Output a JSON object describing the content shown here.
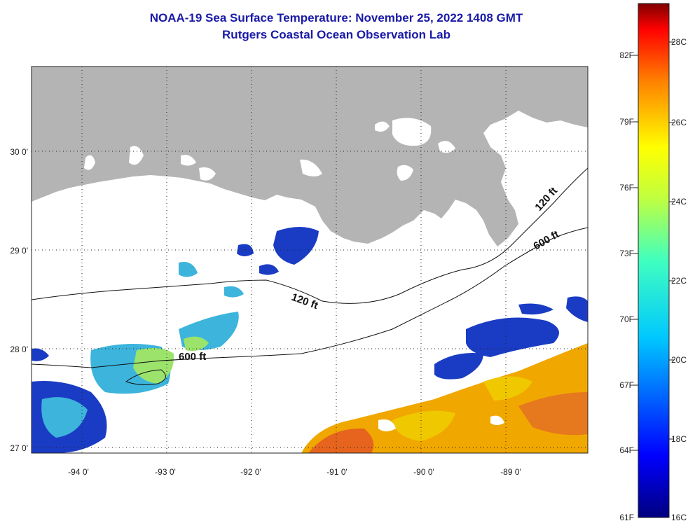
{
  "title": "NOAA-19 Sea Surface Temperature:  November 25, 2022 1408 GMT",
  "subtitle": "Rutgers Coastal Ocean Observation Lab",
  "map": {
    "lat_labels": [
      "30 0'",
      "29 0'",
      "28 0'",
      "27 0'"
    ],
    "lon_labels": [
      "-94 0'",
      "-93 0'",
      "-92 0'",
      "-91 0'",
      "-90 0'",
      "-89 0'"
    ],
    "contour_labels": [
      "120 ft",
      "600 ft",
      "120 ft",
      "600 ft"
    ],
    "colors": {
      "land": "#b4b4b4",
      "ocean_no_data": "#ffffff",
      "cold": "#1e46c8",
      "mid": "#3cb4e6",
      "warm": "#f0b400",
      "hot": "#e6641e"
    }
  },
  "colorbar": {
    "fahrenheit": [
      "82F",
      "79F",
      "76F",
      "73F",
      "70F",
      "67F",
      "64F",
      "61F"
    ],
    "celsius": [
      "28C",
      "26C",
      "24C",
      "22C",
      "20C",
      "18C",
      "16C"
    ],
    "range_c": [
      16,
      29
    ]
  }
}
